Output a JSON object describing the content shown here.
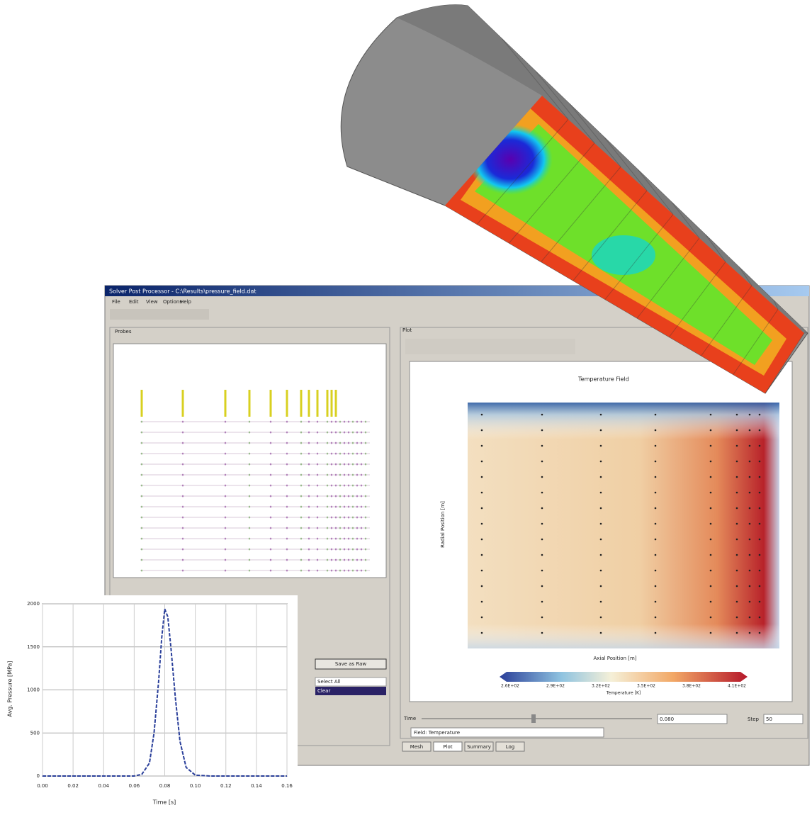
{
  "window": {
    "title": "Solver Post Processor - C:\\Results\\pressure_field.dat",
    "menu": [
      "File",
      "Edit",
      "View",
      "Options",
      "Help"
    ],
    "left_panel_title": "Probes",
    "right_panel_title": "Plot",
    "buttons": [
      "Save as Raw",
      "Select All",
      "Clear"
    ],
    "time_label": "Time",
    "time_value": "0.080",
    "step_label": "Step",
    "step_value": "50",
    "field": "Field: Temperature",
    "tabs": [
      "Mesh",
      "Plot",
      "Summary",
      "Log"
    ]
  },
  "contour": {
    "title": "Temperature Field",
    "x_label": "Axial Position [m]",
    "y_label": "Radial Position [m]",
    "colorbar_ticks": [
      "2.6E+02",
      "2.9E+02",
      "3.2E+02",
      "3.5E+02",
      "3.8E+02",
      "4.1E+02"
    ],
    "colorbar_label": "Temperature [K]"
  },
  "pulse_chart": {
    "type": "line",
    "x_label": "Time [s]",
    "y_label": "Avg. Pressure [MPa]",
    "x": [
      0.0,
      0.02,
      0.04,
      0.06,
      0.065,
      0.07,
      0.073,
      0.076,
      0.078,
      0.08,
      0.082,
      0.084,
      0.087,
      0.09,
      0.094,
      0.1,
      0.11,
      0.12,
      0.14,
      0.16
    ],
    "values": [
      0,
      0,
      0,
      0,
      20,
      150,
      500,
      1100,
      1600,
      1940,
      1850,
      1500,
      900,
      400,
      100,
      10,
      0,
      0,
      0,
      0
    ],
    "color": "#2a3f9a",
    "xlim": [
      0,
      0.16
    ],
    "ylim": [
      0,
      2000
    ],
    "xticks": [
      {
        "value": 0,
        "label": "0.00"
      },
      {
        "value": 0.02,
        "label": "0.02"
      },
      {
        "value": 0.04,
        "label": "0.04"
      },
      {
        "value": 0.06,
        "label": "0.06"
      },
      {
        "value": 0.08,
        "label": "0.08"
      },
      {
        "value": 0.1,
        "label": "0.10"
      },
      {
        "value": 0.12,
        "label": "0.12"
      },
      {
        "value": 0.14,
        "label": "0.14"
      },
      {
        "value": 0.16,
        "label": "0.16"
      }
    ],
    "yticks": [
      0,
      500,
      1000,
      1500,
      2000
    ],
    "grid": true
  }
}
